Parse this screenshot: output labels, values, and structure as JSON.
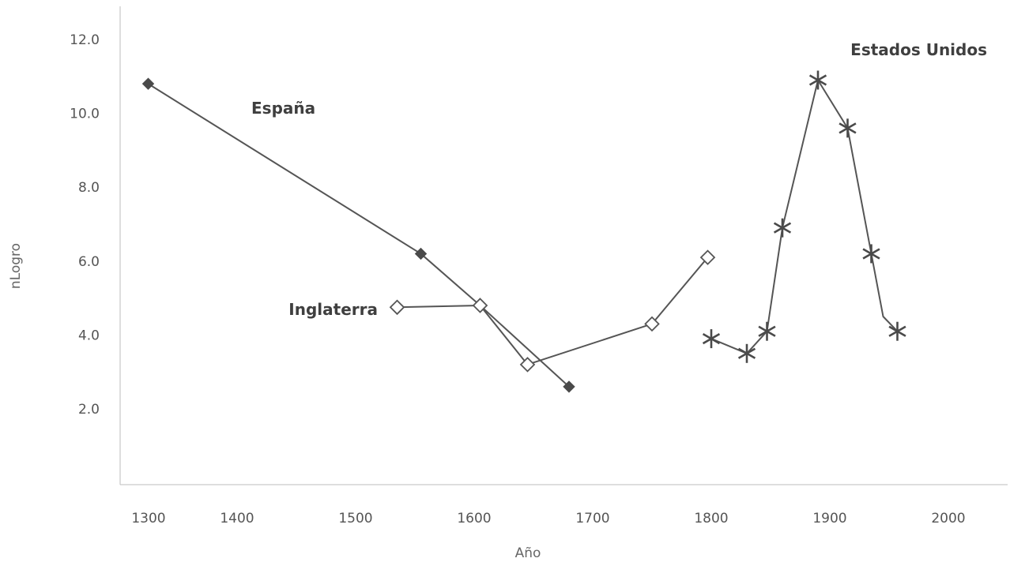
{
  "chart_data": {
    "type": "line",
    "title": "",
    "xlabel": "Año",
    "ylabel": "nLogro",
    "xlim": [
      1270,
      2070
    ],
    "ylim": [
      0,
      12.6
    ],
    "x_ticks": [
      1300,
      1400,
      1500,
      1600,
      1700,
      1800,
      1900,
      2000
    ],
    "y_ticks": [
      2.0,
      4.0,
      6.0,
      8.0,
      10.0,
      12.0
    ],
    "y_tick_labels": [
      "2.0",
      "4.0",
      "6.0",
      "8.0",
      "10.0",
      "12.0"
    ],
    "grid": false,
    "legend": "none (series labelled directly on the plot)",
    "series": [
      {
        "name": "España",
        "marker": "filled-diamond",
        "color": "#555555",
        "x": [
          1325,
          1555,
          1605,
          1680
        ],
        "y": [
          10.8,
          6.2,
          4.8,
          2.6
        ]
      },
      {
        "name": "Inglaterra",
        "marker": "open-diamond",
        "color": "#555555",
        "x": [
          1535,
          1605,
          1645,
          1750,
          1797
        ],
        "y": [
          4.75,
          4.8,
          3.2,
          4.3,
          6.1
        ]
      },
      {
        "name": "Estados Unidos",
        "marker": "asterisk",
        "color": "#555555",
        "x": [
          1800,
          1830,
          1847,
          1860,
          1890,
          1915,
          1935,
          1945,
          1957
        ],
        "y": [
          3.9,
          3.5,
          4.1,
          6.9,
          10.9,
          9.6,
          6.2,
          4.5,
          4.1
        ],
        "markers_at": [
          0,
          1,
          2,
          3,
          4,
          5,
          6,
          8
        ]
      }
    ]
  }
}
